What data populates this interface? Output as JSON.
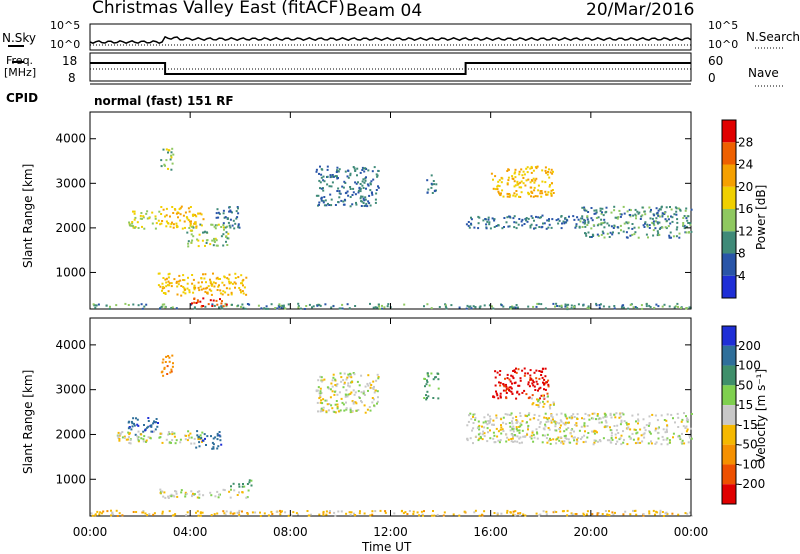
{
  "header": {
    "station": "Christmas Valley East (fitACF)",
    "beam": "Beam 04",
    "date": "20/Mar/2016"
  },
  "aux": {
    "nsky_label": "N.Sky",
    "nsearch_label": "N.Search",
    "nsky_ticks": [
      "10^5",
      "10^0"
    ],
    "nsearch_ticks": [
      "10^5",
      "10^0"
    ],
    "freq_label": "Freq.",
    "freq_unit": "[MHz]",
    "freq_ticks": [
      "18",
      "8"
    ],
    "nave_label": "Nave",
    "nave_ticks": [
      "60",
      "0"
    ],
    "cpid_label": "CPID",
    "cpid_value": "normal (fast) 151 RF"
  },
  "axes": {
    "x_ticks": [
      "00:00",
      "04:00",
      "08:00",
      "12:00",
      "16:00",
      "20:00",
      "00:00"
    ],
    "x_label": "Time UT",
    "y_label": "Slant Range [km]",
    "y_ticks": [
      "1000",
      "2000",
      "3000",
      "4000"
    ]
  },
  "power_bar": {
    "label": "Power [dB]",
    "ticks": [
      "4",
      "8",
      "12",
      "16",
      "20",
      "24",
      "28"
    ],
    "colors": [
      "#1f2fd6",
      "#2955a8",
      "#3f8a78",
      "#8fc860",
      "#f0d000",
      "#f5a000",
      "#ee6000",
      "#e00000"
    ]
  },
  "velocity_bar": {
    "label": "Velocity [m s⁻¹]",
    "ticks": [
      "200",
      "100",
      "50",
      "15",
      "-15",
      "-50",
      "-100",
      "-200"
    ],
    "colors": [
      "#1f2fd6",
      "#2f6f9a",
      "#3f8f6a",
      "#7fd04f",
      "#c8c8c8",
      "#f5b800",
      "#f59000",
      "#ee5000",
      "#e00000"
    ]
  },
  "chart_data": [
    {
      "type": "heatmap",
      "title": "Power [dB]",
      "xlabel": "Time UT",
      "ylabel": "Slant Range [km]",
      "xlim": [
        0,
        24
      ],
      "ylim": [
        180,
        4600
      ],
      "x_ticks_hours": [
        0,
        4,
        8,
        12,
        16,
        20,
        24
      ],
      "y_ticks_km": [
        1000,
        2000,
        3000,
        4000
      ],
      "regions": [
        {
          "t0": 0.0,
          "t1": 24.0,
          "r0": 200,
          "r1": 320,
          "power_db": 10
        },
        {
          "t0": 2.7,
          "t1": 6.3,
          "r0": 500,
          "r1": 1000,
          "power_db": 20
        },
        {
          "t0": 4.0,
          "t1": 5.5,
          "r0": 250,
          "r1": 450,
          "power_db": 28
        },
        {
          "t0": 2.8,
          "t1": 3.3,
          "r0": 3300,
          "r1": 3800,
          "power_db": 14
        },
        {
          "t0": 1.5,
          "t1": 2.8,
          "r0": 2000,
          "r1": 2400,
          "power_db": 16
        },
        {
          "t0": 2.8,
          "t1": 4.5,
          "r0": 2000,
          "r1": 2500,
          "power_db": 20
        },
        {
          "t0": 3.8,
          "t1": 5.5,
          "r0": 1600,
          "r1": 2100,
          "power_db": 14
        },
        {
          "t0": 5.0,
          "t1": 6.0,
          "r0": 2000,
          "r1": 2500,
          "power_db": 8
        },
        {
          "t0": 9.0,
          "t1": 11.5,
          "r0": 2500,
          "r1": 3400,
          "power_db": 8
        },
        {
          "t0": 13.3,
          "t1": 13.8,
          "r0": 2800,
          "r1": 3200,
          "power_db": 8
        },
        {
          "t0": 16.0,
          "t1": 18.5,
          "r0": 2700,
          "r1": 3400,
          "power_db": 20
        },
        {
          "t0": 15.0,
          "t1": 20.0,
          "r0": 2000,
          "r1": 2300,
          "power_db": 8
        },
        {
          "t0": 19.5,
          "t1": 24.0,
          "r0": 1800,
          "r1": 2500,
          "power_db": 10
        }
      ]
    },
    {
      "type": "heatmap",
      "title": "Velocity [m s⁻¹]",
      "xlabel": "Time UT",
      "ylabel": "Slant Range [km]",
      "xlim": [
        0,
        24
      ],
      "ylim": [
        180,
        4600
      ],
      "x_ticks_hours": [
        0,
        4,
        8,
        12,
        16,
        20,
        24
      ],
      "y_ticks_km": [
        1000,
        2000,
        3000,
        4000
      ],
      "regions": [
        {
          "t0": 0.0,
          "t1": 24.0,
          "r0": 200,
          "r1": 320,
          "velocity_ms": -30
        },
        {
          "t0": 2.7,
          "t1": 6.3,
          "r0": 600,
          "r1": 800,
          "velocity_ms": 0
        },
        {
          "t0": 5.5,
          "t1": 6.5,
          "r0": 850,
          "r1": 1000,
          "velocity_ms": 60
        },
        {
          "t0": 2.8,
          "t1": 3.3,
          "r0": 3300,
          "r1": 3800,
          "velocity_ms": -80
        },
        {
          "t0": 1.5,
          "t1": 2.8,
          "r0": 2000,
          "r1": 2400,
          "velocity_ms": 180
        },
        {
          "t0": 1.0,
          "t1": 4.5,
          "r0": 1800,
          "r1": 2100,
          "velocity_ms": 0
        },
        {
          "t0": 4.2,
          "t1": 5.2,
          "r0": 1700,
          "r1": 2100,
          "velocity_ms": 180
        },
        {
          "t0": 9.0,
          "t1": 11.5,
          "r0": 2500,
          "r1": 3400,
          "velocity_ms": 0
        },
        {
          "t0": 13.3,
          "t1": 13.9,
          "r0": 2800,
          "r1": 3400,
          "velocity_ms": 60
        },
        {
          "t0": 16.0,
          "t1": 18.3,
          "r0": 2800,
          "r1": 3500,
          "velocity_ms": -220
        },
        {
          "t0": 17.5,
          "t1": 18.5,
          "r0": 2600,
          "r1": 2900,
          "velocity_ms": 0
        },
        {
          "t0": 15.0,
          "t1": 24.0,
          "r0": 1800,
          "r1": 2500,
          "velocity_ms": 0
        }
      ]
    }
  ]
}
